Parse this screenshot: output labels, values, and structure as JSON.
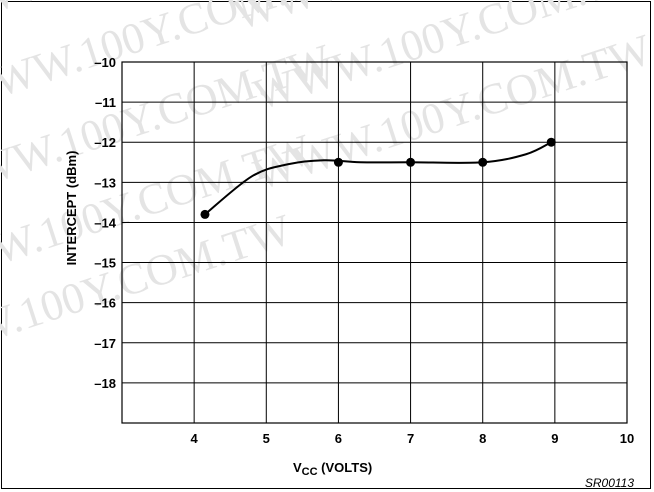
{
  "watermark_text": "WWW.100Y.COM.TW",
  "figure_code": "SR00113",
  "colors": {
    "line": "#000000",
    "grid": "#000000",
    "watermark": "#e4e4e4"
  },
  "chart_data": {
    "type": "line",
    "title": "",
    "xlabel_main": "V",
    "xlabel_sub": "CC",
    "xlabel_units": " (VOLTS)",
    "ylabel": "INTERCEPT (dBm)",
    "xlim": [
      3,
      10
    ],
    "ylim": [
      -19,
      -10
    ],
    "x_ticks": [
      4,
      5,
      6,
      7,
      8,
      9,
      10
    ],
    "x_tick_labels": [
      "4",
      "5",
      "6",
      "7",
      "8",
      "9",
      "10"
    ],
    "y_ticks": [
      -10,
      -11,
      -12,
      -13,
      -14,
      -15,
      -16,
      -17,
      -18
    ],
    "y_tick_labels": [
      "–10",
      "–11",
      "–12",
      "–13",
      "–14",
      "–15",
      "–16",
      "–17",
      "–18"
    ],
    "grid": true,
    "series": [
      {
        "curve": [
          [
            4.15,
            -13.8
          ],
          [
            4.8,
            -12.85
          ],
          [
            5.3,
            -12.55
          ],
          [
            5.8,
            -12.45
          ],
          [
            6.3,
            -12.5
          ],
          [
            7.0,
            -12.5
          ],
          [
            8.0,
            -12.5
          ],
          [
            8.6,
            -12.3
          ],
          [
            8.95,
            -12.0
          ]
        ],
        "markers": [
          [
            4.15,
            -13.8
          ],
          [
            6.0,
            -12.5
          ],
          [
            7.0,
            -12.5
          ],
          [
            8.0,
            -12.5
          ],
          [
            8.95,
            -12.0
          ]
        ]
      }
    ]
  }
}
